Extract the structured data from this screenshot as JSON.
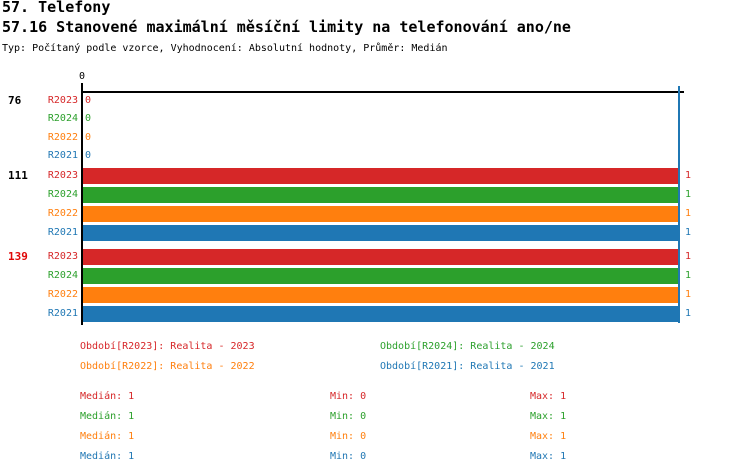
{
  "header": {
    "title": "57. Telefony",
    "subtitle": "57.16 Stanovené maximální měsíční limity na telefonování ano/ne",
    "meta": "Typ: Počítaný podle vzorce, Vyhodnocení: Absolutní hodnoty, Průměr: Medián"
  },
  "palette": {
    "r2023_red": "#d62728",
    "r2024_green": "#2ca02c",
    "r2022_orange": "#ff7f0e",
    "r2021_blue": "#1f77b4",
    "axis_black": "#000000",
    "highlight_red": "#e00808"
  },
  "chart_data": {
    "type": "bar",
    "orientation": "horizontal",
    "title": "57.16 Stanovené maximální měsíční limity na telefonování ano/ne",
    "x_axis": {
      "range": [
        0,
        1
      ],
      "tick_labels": [
        "0"
      ],
      "max_marker_value": 1,
      "grid": false
    },
    "series_order": [
      "R2023",
      "R2024",
      "R2022",
      "R2021"
    ],
    "groups": [
      {
        "label": "76",
        "label_color": "#000000",
        "rows": [
          {
            "series": "R2023",
            "color": "#d62728",
            "value": 0
          },
          {
            "series": "R2024",
            "color": "#2ca02c",
            "value": 0
          },
          {
            "series": "R2022",
            "color": "#ff7f0e",
            "value": 0
          },
          {
            "series": "R2021",
            "color": "#1f77b4",
            "value": 0
          }
        ]
      },
      {
        "label": "111",
        "label_color": "#000000",
        "rows": [
          {
            "series": "R2023",
            "color": "#d62728",
            "value": 1
          },
          {
            "series": "R2024",
            "color": "#2ca02c",
            "value": 1
          },
          {
            "series": "R2022",
            "color": "#ff7f0e",
            "value": 1
          },
          {
            "series": "R2021",
            "color": "#1f77b4",
            "value": 1
          }
        ]
      },
      {
        "label": "139",
        "label_color": "#e00808",
        "rows": [
          {
            "series": "R2023",
            "color": "#d62728",
            "value": 1
          },
          {
            "series": "R2024",
            "color": "#2ca02c",
            "value": 1
          },
          {
            "series": "R2022",
            "color": "#ff7f0e",
            "value": 1
          },
          {
            "series": "R2021",
            "color": "#1f77b4",
            "value": 1
          }
        ]
      }
    ]
  },
  "legend": {
    "items": [
      {
        "text": "Období[R2023]: Realita - 2023",
        "color": "#d62728"
      },
      {
        "text": "Období[R2024]: Realita - 2024",
        "color": "#2ca02c"
      },
      {
        "text": "Období[R2022]: Realita - 2022",
        "color": "#ff7f0e"
      },
      {
        "text": "Období[R2021]: Realita - 2021",
        "color": "#1f77b4"
      }
    ]
  },
  "stats": {
    "rows": [
      {
        "color": "#d62728",
        "median": "Medián: 1",
        "min": "Min: 0",
        "max": "Max: 1"
      },
      {
        "color": "#2ca02c",
        "median": "Medián: 1",
        "min": "Min: 0",
        "max": "Max: 1"
      },
      {
        "color": "#ff7f0e",
        "median": "Medián: 1",
        "min": "Min: 0",
        "max": "Max: 1"
      },
      {
        "color": "#1f77b4",
        "median": "Medián: 1",
        "min": "Min: 0",
        "max": "Max: 1"
      }
    ]
  }
}
